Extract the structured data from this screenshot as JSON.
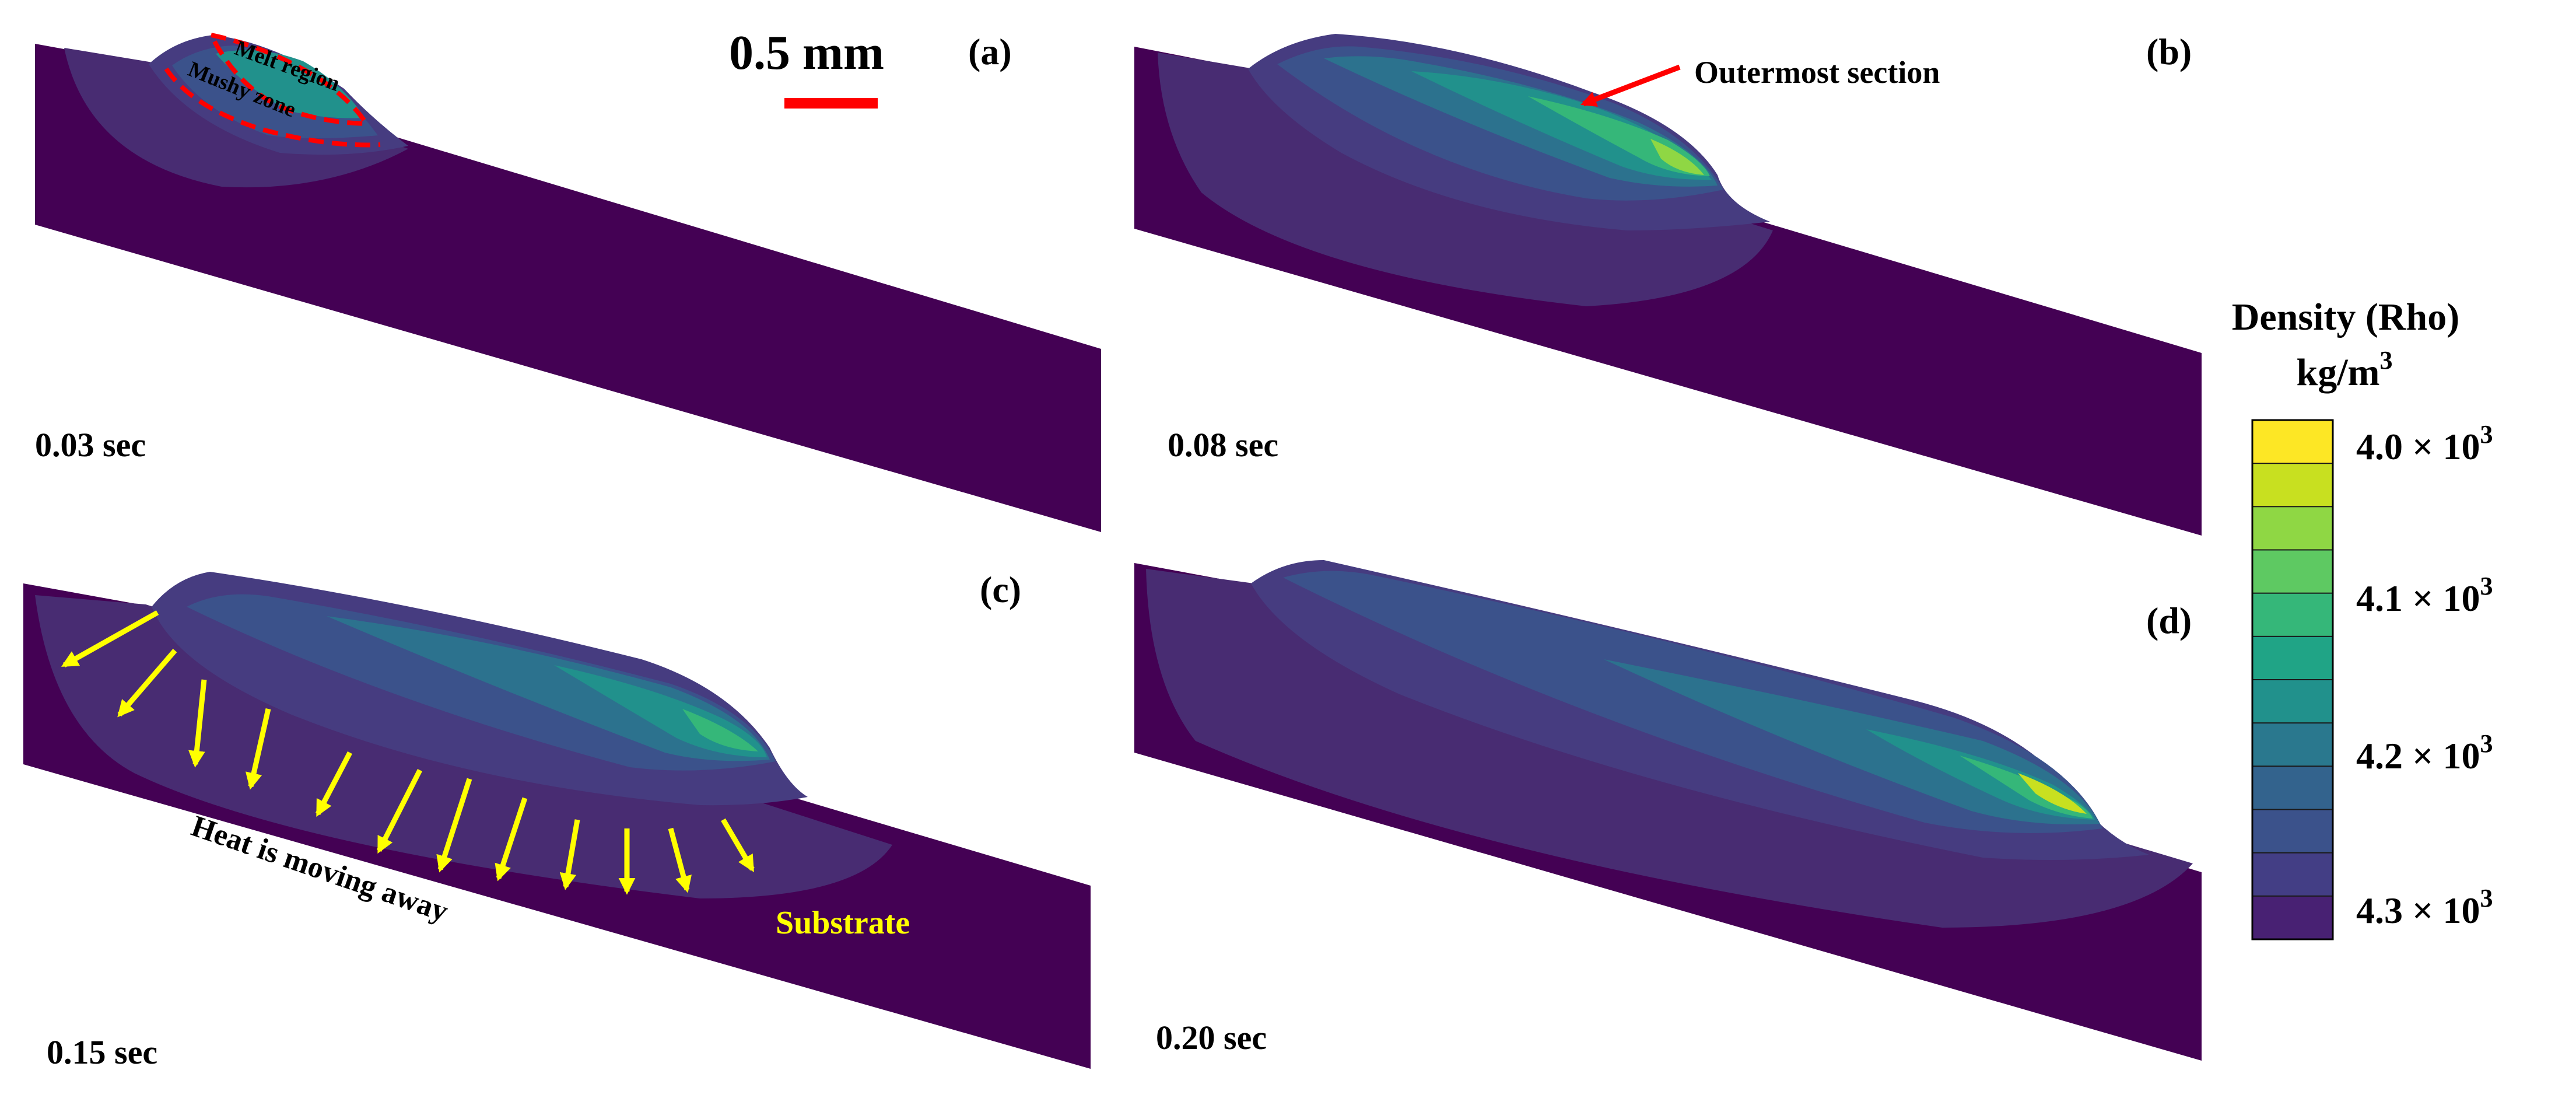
{
  "panels": [
    {
      "letter": "(a)",
      "time": "0.03 sec"
    },
    {
      "letter": "(b)",
      "time": "0.08 sec"
    },
    {
      "letter": "(c)",
      "time": "0.15 sec"
    },
    {
      "letter": "(d)",
      "time": "0.20 sec"
    }
  ],
  "scale_bar": {
    "label": "0.5 mm",
    "color": "#ff0000"
  },
  "annotations": {
    "melt_region": "Melt region",
    "mushy_zone": "Mushy zone",
    "outermost_section": "Outermost section",
    "heat_moving": "Heat is moving away",
    "substrate": "Substrate"
  },
  "colorbar": {
    "title": "Density (Rho)",
    "unit": "kg/m",
    "unit_exp": "3",
    "ticks": [
      {
        "mantissa": "4.0",
        "base": "10",
        "exp": "3"
      },
      {
        "mantissa": "4.1",
        "base": "10",
        "exp": "3"
      },
      {
        "mantissa": "4.2",
        "base": "10",
        "exp": "3"
      },
      {
        "mantissa": "4.3",
        "base": "10",
        "exp": "3"
      }
    ],
    "colors": [
      "#fde725",
      "#c8e020",
      "#8fd744",
      "#5ec962",
      "#35b779",
      "#20a486",
      "#21918c",
      "#2a788e",
      "#33638d",
      "#3b528b",
      "#433e85",
      "#482173"
    ]
  },
  "colors": {
    "substrate": "#440154",
    "arrow_yellow": "#ffff00",
    "annotation_red": "#ff0000",
    "substrate_label": "#ffff00"
  }
}
